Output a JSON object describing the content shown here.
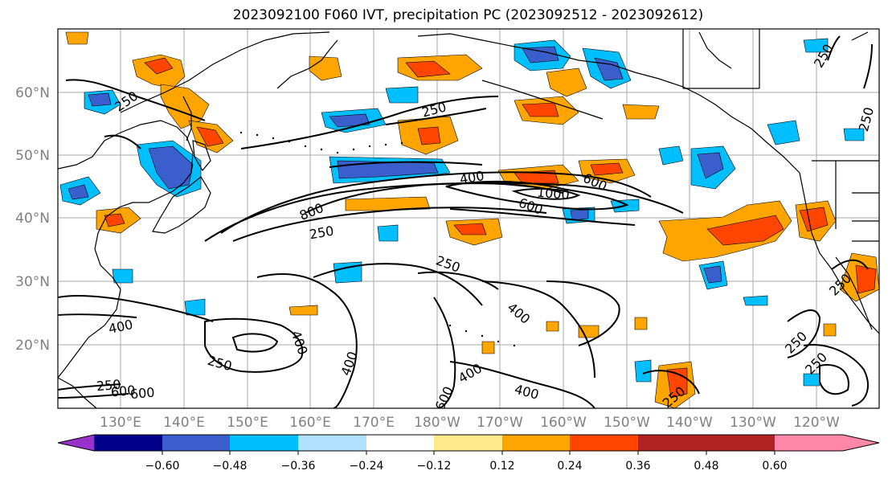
{
  "title": "2023092100 F060 IVT, precipitation PC (2023092512 - 2023092612)",
  "lat_labels": [
    "60°N",
    "50°N",
    "40°N",
    "30°N",
    "20°N"
  ],
  "lon_labels": [
    "130°E",
    "140°E",
    "150°E",
    "160°E",
    "170°E",
    "180°W",
    "170°W",
    "160°W",
    "150°W",
    "140°W",
    "130°W",
    "120°W"
  ],
  "colorbar": {
    "tick_labels": [
      "−0.60",
      "−0.48",
      "−0.36",
      "−0.24",
      "−0.12",
      "0.12",
      "0.24",
      "0.36",
      "0.48",
      "0.60"
    ],
    "colors": [
      "#9932cc",
      "#00008b",
      "#3a5fcd",
      "#00bfff",
      "#b0e2ff",
      "#ffffff",
      "#ffe98a",
      "#ffa500",
      "#ff4500",
      "#b22222",
      "#ff88aa"
    ]
  },
  "contour_labels": [
    {
      "text": "250"
    },
    {
      "text": "250"
    },
    {
      "text": "250"
    },
    {
      "text": "250"
    },
    {
      "text": "400"
    },
    {
      "text": "800"
    },
    {
      "text": "600"
    },
    {
      "text": "1000"
    },
    {
      "text": "600"
    },
    {
      "text": "250"
    },
    {
      "text": "250"
    },
    {
      "text": "400"
    },
    {
      "text": "400"
    },
    {
      "text": "400"
    },
    {
      "text": "250"
    },
    {
      "text": "400"
    },
    {
      "text": "400"
    },
    {
      "text": "400"
    },
    {
      "text": "600"
    },
    {
      "text": "250"
    },
    {
      "text": "600"
    },
    {
      "text": "250"
    },
    {
      "text": "250"
    },
    {
      "text": "250"
    },
    {
      "text": "250"
    },
    {
      "text": "600"
    }
  ]
}
